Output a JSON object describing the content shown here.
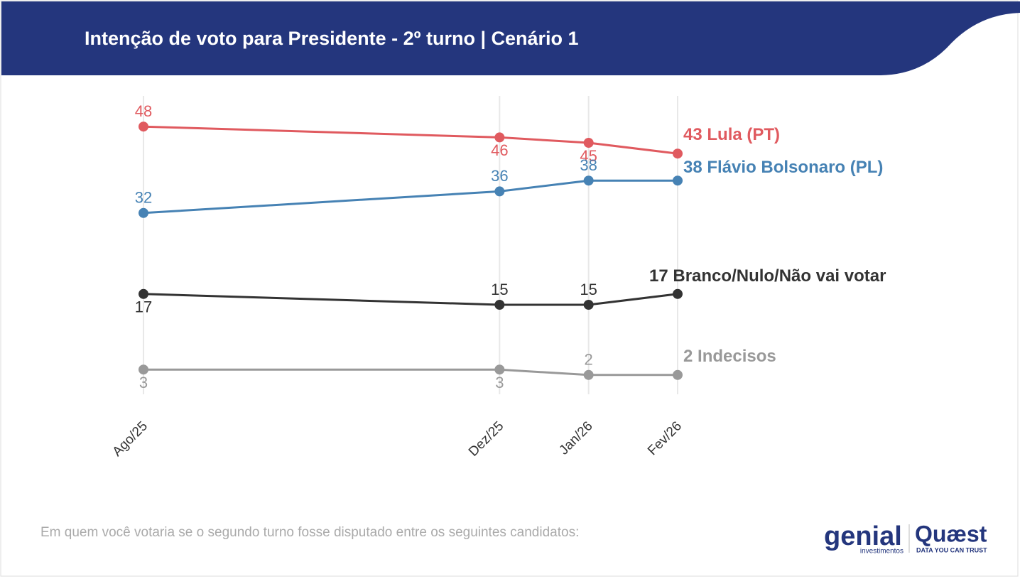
{
  "chart_data": {
    "type": "line",
    "title": "Intenção de voto para Presidente - 2º turno | Cenário 1",
    "x": [
      "2025-08",
      "2025-12",
      "2026-01",
      "2026-02"
    ],
    "xlim": [
      "2025-08",
      "2026-02"
    ],
    "xticks": [
      {
        "value": "2025-08",
        "label": "Ago/25"
      },
      {
        "value": "2025-12",
        "label": "Dez/25"
      },
      {
        "value": "2026-01",
        "label": "Jan/26"
      },
      {
        "value": "2026-02",
        "label": "Fev/26"
      }
    ],
    "ylim": [
      0,
      55
    ],
    "grid": true,
    "series": [
      {
        "name": "Lula (PT)",
        "color": "#e05a5f",
        "values": [
          48,
          46,
          45,
          43
        ]
      },
      {
        "name": "Flávio Bolsonaro (PL)",
        "color": "#4682b4",
        "values": [
          32,
          36,
          38,
          38
        ]
      },
      {
        "name": "Branco/Nulo/Não vai votar",
        "color": "#333333",
        "values": [
          17,
          15,
          15,
          17
        ]
      },
      {
        "name": "Indecisos",
        "color": "#999999",
        "values": [
          3,
          3,
          2,
          2
        ]
      }
    ]
  },
  "footer": {
    "note": "Em quem você votaria se o segundo turno fosse disputado entre os seguintes candidatos:",
    "logo_left": "genial",
    "logo_left_sub": "investimentos",
    "logo_right": "Quæst",
    "logo_right_sub": "DATA YOU CAN TRUST"
  }
}
